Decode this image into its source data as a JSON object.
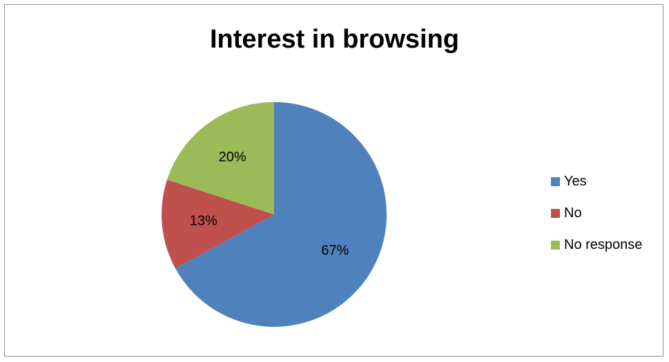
{
  "chart_data": {
    "type": "pie",
    "title": "Interest in browsing",
    "categories": [
      "Yes",
      "No",
      "No response"
    ],
    "values": [
      67,
      13,
      20
    ],
    "labels": [
      "67%",
      "13%",
      "20%"
    ],
    "colors": [
      "#4f81bd",
      "#c0504d",
      "#9bbb59"
    ],
    "legend": "right"
  }
}
